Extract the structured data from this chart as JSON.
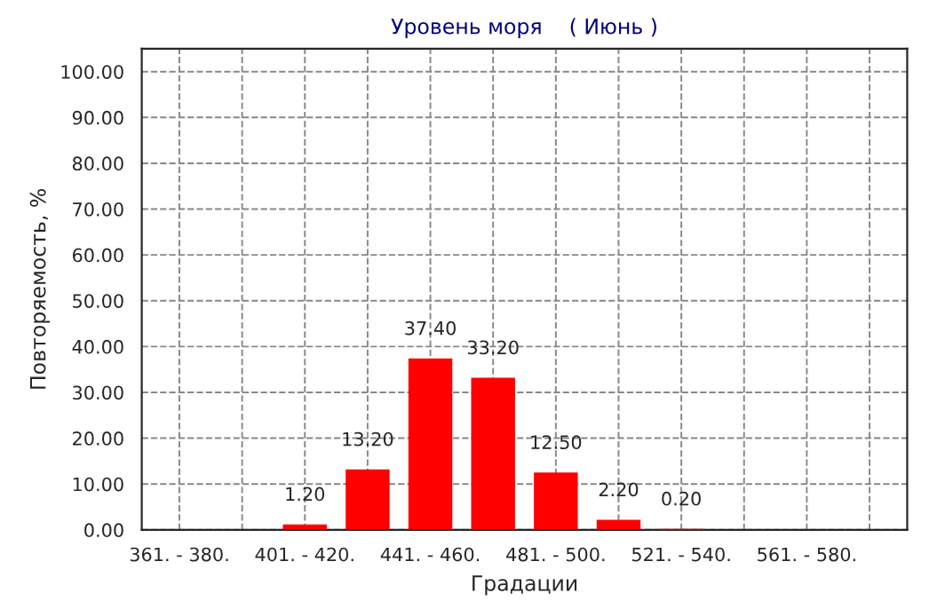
{
  "chart_data": {
    "type": "bar",
    "title": "Уровень моря    ( Июнь )",
    "xlabel": "Градации",
    "ylabel": "Повторяемость, %",
    "categories": [
      "361. - 380.",
      null,
      "401. - 420.",
      null,
      "441. - 460.",
      null,
      "481. - 500.",
      null,
      "521. - 540.",
      null,
      "561. - 580.",
      null
    ],
    "values": [
      0,
      0,
      1.2,
      13.2,
      37.4,
      33.2,
      12.5,
      2.2,
      0.2,
      0,
      0,
      0
    ],
    "value_labels": [
      null,
      null,
      "1.20",
      "13.20",
      "37.40",
      "33.20",
      "12.50",
      "2.20",
      "0.20",
      null,
      null,
      null
    ],
    "color": "#ff0000",
    "ylim": [
      0,
      105
    ],
    "yticks": [
      {
        "value": 0,
        "label": "0.00"
      },
      {
        "value": 10,
        "label": "10.00"
      },
      {
        "value": 20,
        "label": "20.00"
      },
      {
        "value": 30,
        "label": "30.00"
      },
      {
        "value": 40,
        "label": "40.00"
      },
      {
        "value": 50,
        "label": "50.00"
      },
      {
        "value": 60,
        "label": "60.00"
      },
      {
        "value": 70,
        "label": "70.00"
      },
      {
        "value": 80,
        "label": "80.00"
      },
      {
        "value": 90,
        "label": "90.00"
      },
      {
        "value": 100,
        "label": "100.00"
      }
    ],
    "grid": true,
    "legend": false
  }
}
